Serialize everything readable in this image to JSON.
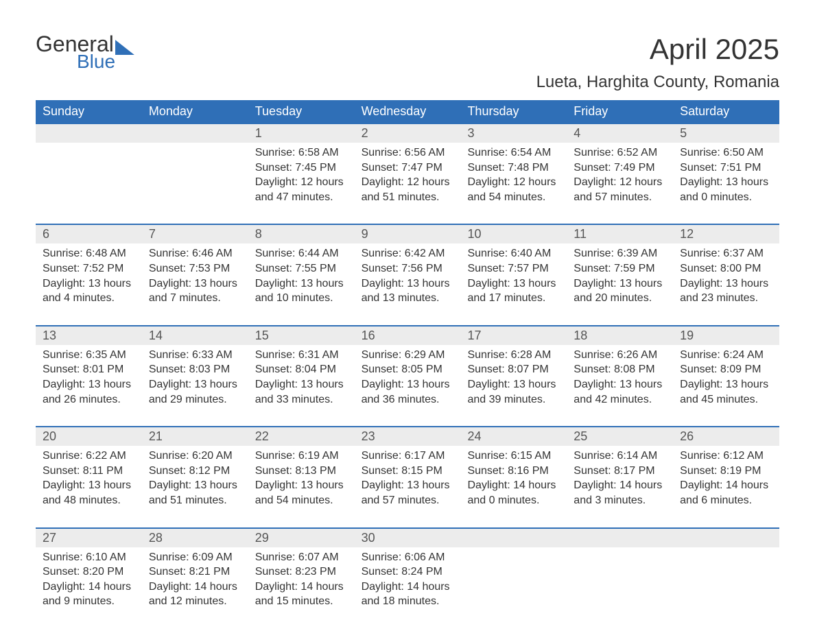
{
  "logo": {
    "text1": "General",
    "text2": "Blue"
  },
  "header": {
    "month_title": "April 2025",
    "location": "Lueta, Harghita County, Romania"
  },
  "columns": [
    "Sunday",
    "Monday",
    "Tuesday",
    "Wednesday",
    "Thursday",
    "Friday",
    "Saturday"
  ],
  "colors": {
    "brand_blue": "#2f6fb7",
    "daynum_bg": "#ececec",
    "text": "#333333",
    "white": "#ffffff"
  },
  "labels": {
    "sunrise": "Sunrise:",
    "sunset": "Sunset:",
    "daylight": "Daylight:"
  },
  "weeks": [
    [
      null,
      null,
      {
        "n": "1",
        "sunrise": "6:58 AM",
        "sunset": "7:45 PM",
        "daylight1": "12 hours",
        "daylight2": "and 47 minutes."
      },
      {
        "n": "2",
        "sunrise": "6:56 AM",
        "sunset": "7:47 PM",
        "daylight1": "12 hours",
        "daylight2": "and 51 minutes."
      },
      {
        "n": "3",
        "sunrise": "6:54 AM",
        "sunset": "7:48 PM",
        "daylight1": "12 hours",
        "daylight2": "and 54 minutes."
      },
      {
        "n": "4",
        "sunrise": "6:52 AM",
        "sunset": "7:49 PM",
        "daylight1": "12 hours",
        "daylight2": "and 57 minutes."
      },
      {
        "n": "5",
        "sunrise": "6:50 AM",
        "sunset": "7:51 PM",
        "daylight1": "13 hours",
        "daylight2": "and 0 minutes."
      }
    ],
    [
      {
        "n": "6",
        "sunrise": "6:48 AM",
        "sunset": "7:52 PM",
        "daylight1": "13 hours",
        "daylight2": "and 4 minutes."
      },
      {
        "n": "7",
        "sunrise": "6:46 AM",
        "sunset": "7:53 PM",
        "daylight1": "13 hours",
        "daylight2": "and 7 minutes."
      },
      {
        "n": "8",
        "sunrise": "6:44 AM",
        "sunset": "7:55 PM",
        "daylight1": "13 hours",
        "daylight2": "and 10 minutes."
      },
      {
        "n": "9",
        "sunrise": "6:42 AM",
        "sunset": "7:56 PM",
        "daylight1": "13 hours",
        "daylight2": "and 13 minutes."
      },
      {
        "n": "10",
        "sunrise": "6:40 AM",
        "sunset": "7:57 PM",
        "daylight1": "13 hours",
        "daylight2": "and 17 minutes."
      },
      {
        "n": "11",
        "sunrise": "6:39 AM",
        "sunset": "7:59 PM",
        "daylight1": "13 hours",
        "daylight2": "and 20 minutes."
      },
      {
        "n": "12",
        "sunrise": "6:37 AM",
        "sunset": "8:00 PM",
        "daylight1": "13 hours",
        "daylight2": "and 23 minutes."
      }
    ],
    [
      {
        "n": "13",
        "sunrise": "6:35 AM",
        "sunset": "8:01 PM",
        "daylight1": "13 hours",
        "daylight2": "and 26 minutes."
      },
      {
        "n": "14",
        "sunrise": "6:33 AM",
        "sunset": "8:03 PM",
        "daylight1": "13 hours",
        "daylight2": "and 29 minutes."
      },
      {
        "n": "15",
        "sunrise": "6:31 AM",
        "sunset": "8:04 PM",
        "daylight1": "13 hours",
        "daylight2": "and 33 minutes."
      },
      {
        "n": "16",
        "sunrise": "6:29 AM",
        "sunset": "8:05 PM",
        "daylight1": "13 hours",
        "daylight2": "and 36 minutes."
      },
      {
        "n": "17",
        "sunrise": "6:28 AM",
        "sunset": "8:07 PM",
        "daylight1": "13 hours",
        "daylight2": "and 39 minutes."
      },
      {
        "n": "18",
        "sunrise": "6:26 AM",
        "sunset": "8:08 PM",
        "daylight1": "13 hours",
        "daylight2": "and 42 minutes."
      },
      {
        "n": "19",
        "sunrise": "6:24 AM",
        "sunset": "8:09 PM",
        "daylight1": "13 hours",
        "daylight2": "and 45 minutes."
      }
    ],
    [
      {
        "n": "20",
        "sunrise": "6:22 AM",
        "sunset": "8:11 PM",
        "daylight1": "13 hours",
        "daylight2": "and 48 minutes."
      },
      {
        "n": "21",
        "sunrise": "6:20 AM",
        "sunset": "8:12 PM",
        "daylight1": "13 hours",
        "daylight2": "and 51 minutes."
      },
      {
        "n": "22",
        "sunrise": "6:19 AM",
        "sunset": "8:13 PM",
        "daylight1": "13 hours",
        "daylight2": "and 54 minutes."
      },
      {
        "n": "23",
        "sunrise": "6:17 AM",
        "sunset": "8:15 PM",
        "daylight1": "13 hours",
        "daylight2": "and 57 minutes."
      },
      {
        "n": "24",
        "sunrise": "6:15 AM",
        "sunset": "8:16 PM",
        "daylight1": "14 hours",
        "daylight2": "and 0 minutes."
      },
      {
        "n": "25",
        "sunrise": "6:14 AM",
        "sunset": "8:17 PM",
        "daylight1": "14 hours",
        "daylight2": "and 3 minutes."
      },
      {
        "n": "26",
        "sunrise": "6:12 AM",
        "sunset": "8:19 PM",
        "daylight1": "14 hours",
        "daylight2": "and 6 minutes."
      }
    ],
    [
      {
        "n": "27",
        "sunrise": "6:10 AM",
        "sunset": "8:20 PM",
        "daylight1": "14 hours",
        "daylight2": "and 9 minutes."
      },
      {
        "n": "28",
        "sunrise": "6:09 AM",
        "sunset": "8:21 PM",
        "daylight1": "14 hours",
        "daylight2": "and 12 minutes."
      },
      {
        "n": "29",
        "sunrise": "6:07 AM",
        "sunset": "8:23 PM",
        "daylight1": "14 hours",
        "daylight2": "and 15 minutes."
      },
      {
        "n": "30",
        "sunrise": "6:06 AM",
        "sunset": "8:24 PM",
        "daylight1": "14 hours",
        "daylight2": "and 18 minutes."
      },
      null,
      null,
      null
    ]
  ]
}
